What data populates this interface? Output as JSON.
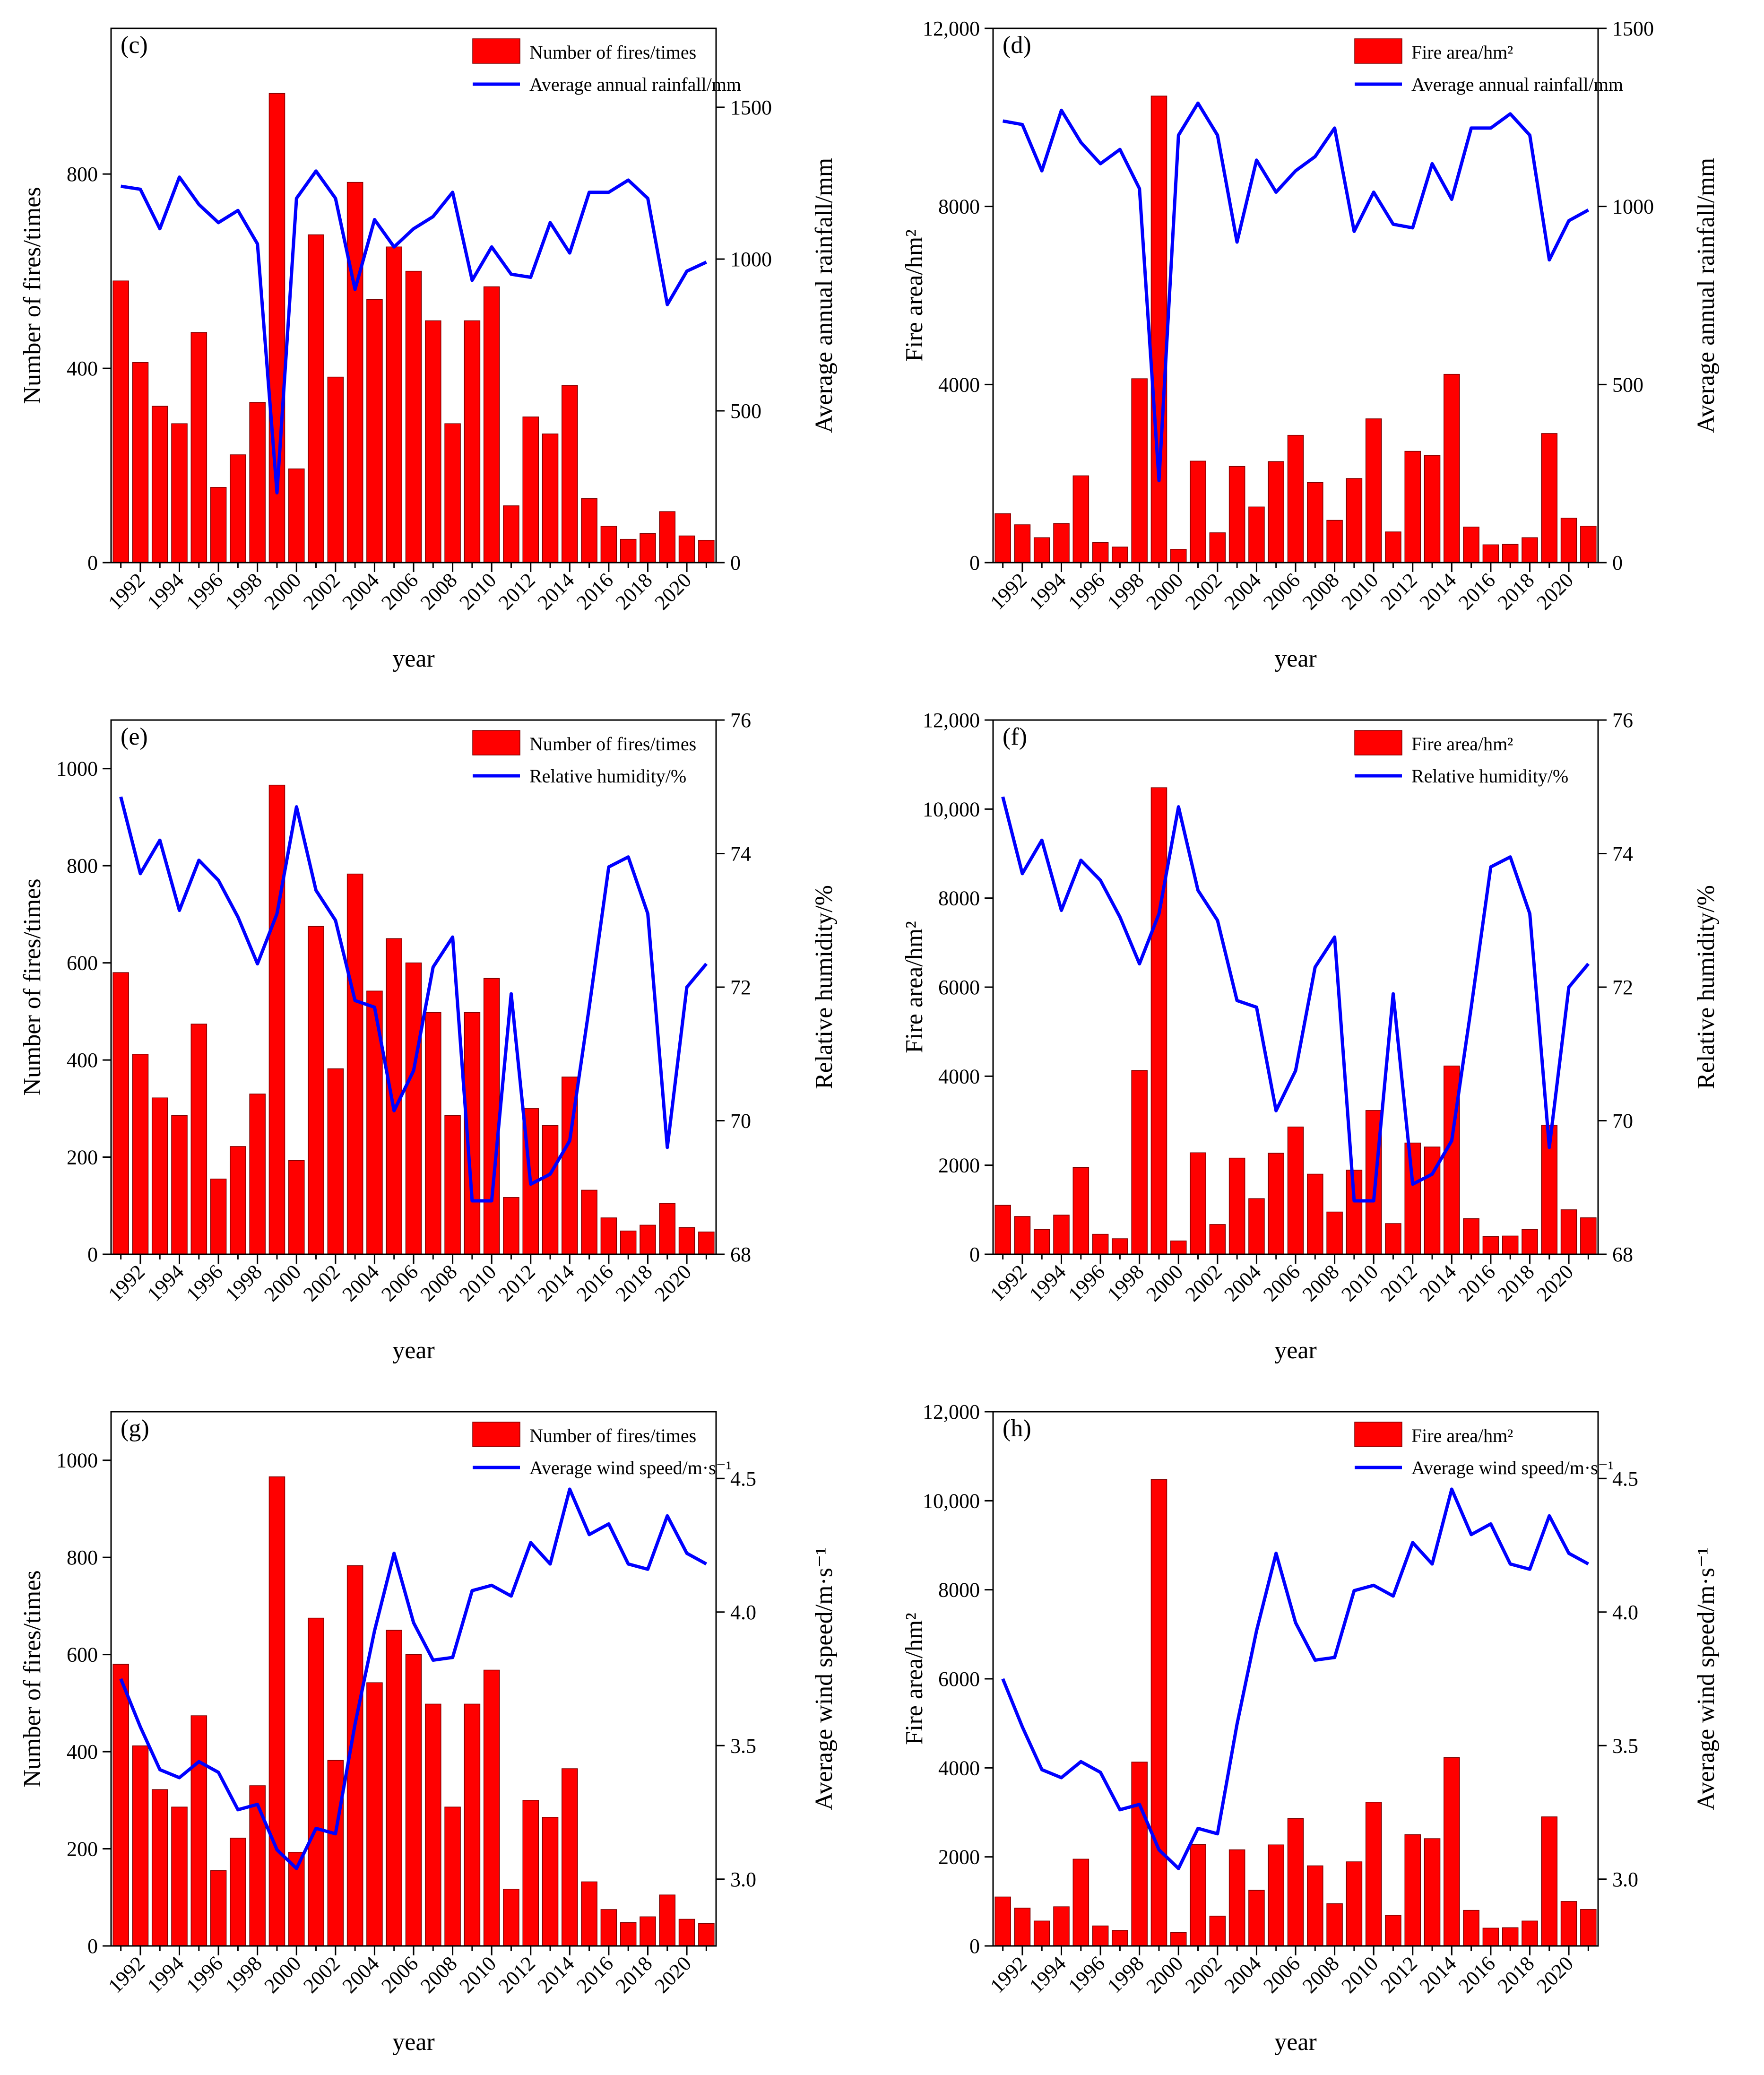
{
  "colors": {
    "bars": "#ff0000",
    "bar_edge": "#7a0000",
    "line": "#0000ff",
    "axis": "#000000"
  },
  "chart_data": [
    {
      "id": "c",
      "type": "bar+line",
      "title": "(c)",
      "xlabel": "year",
      "ylabel": "Number of fires/times",
      "y2label": "Average annual rainfall/mm",
      "legend": [
        "Number of fires/times",
        "Average annual rainfall/mm"
      ],
      "legend_position": "top-right",
      "x": [
        1991,
        1992,
        1993,
        1994,
        1995,
        1996,
        1997,
        1998,
        1999,
        2000,
        2001,
        2002,
        2003,
        2004,
        2005,
        2006,
        2007,
        2008,
        2009,
        2010,
        2011,
        2012,
        2013,
        2014,
        2015,
        2016,
        2017,
        2018,
        2019,
        2020,
        2021
      ],
      "xticks": [
        "1992",
        "1994",
        "1996",
        "1998",
        "2000",
        "2002",
        "2004",
        "2006",
        "2008",
        "2010",
        "2012",
        "2014",
        "2016",
        "2018",
        "2020"
      ],
      "bar_values": [
        580,
        412,
        322,
        286,
        474,
        155,
        222,
        330,
        966,
        193,
        675,
        382,
        783,
        542,
        650,
        600,
        498,
        286,
        498,
        568,
        117,
        300,
        265,
        365,
        132,
        75,
        48,
        60,
        105,
        55,
        46
      ],
      "line_values": [
        1240,
        1230,
        1100,
        1270,
        1180,
        1120,
        1160,
        1050,
        230,
        1200,
        1290,
        1200,
        900,
        1130,
        1040,
        1100,
        1140,
        1220,
        930,
        1040,
        950,
        940,
        1120,
        1020,
        1220,
        1220,
        1260,
        1200,
        850,
        960,
        990
      ],
      "ylim": [
        0,
        1100
      ],
      "yticks": [
        0,
        400,
        800
      ],
      "yticklabels": [
        "0",
        "400",
        "800"
      ],
      "y2lim": [
        0,
        1760
      ],
      "y2ticks": [
        0,
        500,
        1000,
        1500
      ],
      "y2ticklabels": [
        "0",
        "500",
        "1000",
        "1500"
      ]
    },
    {
      "id": "d",
      "type": "bar+line",
      "title": "(d)",
      "xlabel": "year",
      "ylabel": "Fire area/hm²",
      "y2label": "Average annual rainfall/mm",
      "legend": [
        "Fire area/hm²",
        "Average annual rainfall/mm"
      ],
      "legend_position": "top-right",
      "x": [
        1991,
        1992,
        1993,
        1994,
        1995,
        1996,
        1997,
        1998,
        1999,
        2000,
        2001,
        2002,
        2003,
        2004,
        2005,
        2006,
        2007,
        2008,
        2009,
        2010,
        2011,
        2012,
        2013,
        2014,
        2015,
        2016,
        2017,
        2018,
        2019,
        2020,
        2021
      ],
      "xticks": [
        "1992",
        "1994",
        "1996",
        "1998",
        "2000",
        "2002",
        "2004",
        "2006",
        "2008",
        "2010",
        "2012",
        "2014",
        "2016",
        "2018",
        "2020"
      ],
      "bar_values": [
        1100,
        850,
        560,
        880,
        1950,
        450,
        350,
        4130,
        10480,
        300,
        2280,
        670,
        2160,
        1250,
        2270,
        2860,
        1800,
        950,
        1890,
        3230,
        690,
        2500,
        2410,
        4230,
        800,
        400,
        410,
        560,
        2900,
        1000,
        820
      ],
      "line_values": [
        1240,
        1230,
        1100,
        1270,
        1180,
        1120,
        1160,
        1050,
        230,
        1200,
        1290,
        1200,
        900,
        1130,
        1040,
        1100,
        1140,
        1220,
        930,
        1040,
        950,
        940,
        1120,
        1020,
        1220,
        1220,
        1260,
        1200,
        850,
        960,
        990
      ],
      "ylim": [
        0,
        12000
      ],
      "yticks": [
        0,
        4000,
        8000,
        12000
      ],
      "yticklabels": [
        "0",
        "4000",
        "8000",
        "12,000"
      ],
      "y2lim": [
        0,
        1500
      ],
      "y2ticks": [
        0,
        500,
        1000,
        1500
      ],
      "y2ticklabels": [
        "0",
        "500",
        "1000",
        "1500"
      ]
    },
    {
      "id": "e",
      "type": "bar+line",
      "title": "(e)",
      "xlabel": "year",
      "ylabel": "Number of fires/times",
      "y2label": "Relative humidity/%",
      "legend": [
        "Number of fires/times",
        "Relative humidity/%"
      ],
      "legend_position": "top-right",
      "x": [
        1991,
        1992,
        1993,
        1994,
        1995,
        1996,
        1997,
        1998,
        1999,
        2000,
        2001,
        2002,
        2003,
        2004,
        2005,
        2006,
        2007,
        2008,
        2009,
        2010,
        2011,
        2012,
        2013,
        2014,
        2015,
        2016,
        2017,
        2018,
        2019,
        2020,
        2021
      ],
      "xticks": [
        "1992",
        "1994",
        "1996",
        "1998",
        "2000",
        "2002",
        "2004",
        "2006",
        "2008",
        "2010",
        "2012",
        "2014",
        "2016",
        "2018",
        "2020"
      ],
      "bar_values": [
        580,
        412,
        322,
        286,
        474,
        155,
        222,
        330,
        966,
        193,
        675,
        382,
        783,
        542,
        650,
        600,
        498,
        286,
        498,
        568,
        117,
        300,
        265,
        365,
        132,
        75,
        48,
        60,
        105,
        55,
        46
      ],
      "line_values": [
        74.85,
        73.7,
        74.2,
        73.15,
        73.9,
        73.6,
        73.05,
        72.35,
        73.1,
        74.7,
        73.45,
        73.0,
        71.8,
        71.7,
        70.15,
        70.75,
        72.3,
        72.75,
        68.8,
        68.8,
        71.9,
        69.05,
        69.2,
        69.7,
        71.7,
        73.8,
        73.95,
        73.1,
        69.6,
        72.0,
        72.35
      ],
      "ylim": [
        0,
        1100
      ],
      "yticks": [
        0,
        200,
        400,
        600,
        800,
        1000
      ],
      "yticklabels": [
        "0",
        "200",
        "400",
        "600",
        "800",
        "1000"
      ],
      "y2lim": [
        68,
        76
      ],
      "y2ticks": [
        68,
        70,
        72,
        74,
        76
      ],
      "y2ticklabels": [
        "68",
        "70",
        "72",
        "74",
        "76"
      ]
    },
    {
      "id": "f",
      "type": "bar+line",
      "title": "(f)",
      "xlabel": "year",
      "ylabel": "Fire area/hm²",
      "y2label": "Relative humidity/%",
      "legend": [
        "Fire area/hm²",
        "Relative humidity/%"
      ],
      "legend_position": "top-right",
      "x": [
        1991,
        1992,
        1993,
        1994,
        1995,
        1996,
        1997,
        1998,
        1999,
        2000,
        2001,
        2002,
        2003,
        2004,
        2005,
        2006,
        2007,
        2008,
        2009,
        2010,
        2011,
        2012,
        2013,
        2014,
        2015,
        2016,
        2017,
        2018,
        2019,
        2020,
        2021
      ],
      "xticks": [
        "1992",
        "1994",
        "1996",
        "1998",
        "2000",
        "2002",
        "2004",
        "2006",
        "2008",
        "2010",
        "2012",
        "2014",
        "2016",
        "2018",
        "2020"
      ],
      "bar_values": [
        1100,
        850,
        560,
        880,
        1950,
        450,
        350,
        4130,
        10480,
        300,
        2280,
        670,
        2160,
        1250,
        2270,
        2860,
        1800,
        950,
        1890,
        3230,
        690,
        2500,
        2410,
        4230,
        800,
        400,
        410,
        560,
        2900,
        1000,
        820
      ],
      "line_values": [
        74.85,
        73.7,
        74.2,
        73.15,
        73.9,
        73.6,
        73.05,
        72.35,
        73.1,
        74.7,
        73.45,
        73.0,
        71.8,
        71.7,
        70.15,
        70.75,
        72.3,
        72.75,
        68.8,
        68.8,
        71.9,
        69.05,
        69.2,
        69.7,
        71.7,
        73.8,
        73.95,
        73.1,
        69.6,
        72.0,
        72.35
      ],
      "ylim": [
        0,
        12000
      ],
      "yticks": [
        0,
        2000,
        4000,
        6000,
        8000,
        10000,
        12000
      ],
      "yticklabels": [
        "0",
        "2000",
        "4000",
        "6000",
        "8000",
        "10,000",
        "12,000"
      ],
      "y2lim": [
        68,
        76
      ],
      "y2ticks": [
        68,
        70,
        72,
        74,
        76
      ],
      "y2ticklabels": [
        "68",
        "70",
        "72",
        "74",
        "76"
      ]
    },
    {
      "id": "g",
      "type": "bar+line",
      "title": "(g)",
      "xlabel": "year",
      "ylabel": "Number of fires/times",
      "y2label": "Average wind speed/m·s⁻¹",
      "legend": [
        "Number of fires/times",
        "Average wind speed/m·s⁻¹"
      ],
      "legend_position": "top-right",
      "x": [
        1991,
        1992,
        1993,
        1994,
        1995,
        1996,
        1997,
        1998,
        1999,
        2000,
        2001,
        2002,
        2003,
        2004,
        2005,
        2006,
        2007,
        2008,
        2009,
        2010,
        2011,
        2012,
        2013,
        2014,
        2015,
        2016,
        2017,
        2018,
        2019,
        2020,
        2021
      ],
      "xticks": [
        "1992",
        "1994",
        "1996",
        "1998",
        "2000",
        "2002",
        "2004",
        "2006",
        "2008",
        "2010",
        "2012",
        "2014",
        "2016",
        "2018",
        "2020"
      ],
      "bar_values": [
        580,
        412,
        322,
        286,
        474,
        155,
        222,
        330,
        966,
        193,
        675,
        382,
        783,
        542,
        650,
        600,
        498,
        286,
        498,
        568,
        117,
        300,
        265,
        365,
        132,
        75,
        48,
        60,
        105,
        55,
        46
      ],
      "line_values": [
        3.75,
        3.57,
        3.41,
        3.38,
        3.44,
        3.4,
        3.26,
        3.28,
        3.11,
        3.04,
        3.19,
        3.17,
        3.58,
        3.93,
        4.22,
        3.96,
        3.82,
        3.83,
        4.08,
        4.1,
        4.06,
        4.26,
        4.18,
        4.46,
        4.29,
        4.33,
        4.18,
        4.16,
        4.36,
        4.22,
        4.18
      ],
      "ylim": [
        0,
        1100
      ],
      "yticks": [
        0,
        200,
        400,
        600,
        800,
        1000
      ],
      "yticklabels": [
        "0",
        "200",
        "400",
        "600",
        "800",
        "1000"
      ],
      "y2lim": [
        2.75,
        4.75
      ],
      "y2ticks": [
        3.0,
        3.5,
        4.0,
        4.5
      ],
      "y2ticklabels": [
        "3.0",
        "3.5",
        "4.0",
        "4.5"
      ]
    },
    {
      "id": "h",
      "type": "bar+line",
      "title": "(h)",
      "xlabel": "year",
      "ylabel": "Fire area/hm²",
      "y2label": "Average wind speed/m·s⁻¹",
      "legend": [
        "Fire area/hm²",
        "Average wind speed/m·s⁻¹"
      ],
      "legend_position": "top-right",
      "x": [
        1991,
        1992,
        1993,
        1994,
        1995,
        1996,
        1997,
        1998,
        1999,
        2000,
        2001,
        2002,
        2003,
        2004,
        2005,
        2006,
        2007,
        2008,
        2009,
        2010,
        2011,
        2012,
        2013,
        2014,
        2015,
        2016,
        2017,
        2018,
        2019,
        2020,
        2021
      ],
      "xticks": [
        "1992",
        "1994",
        "1996",
        "1998",
        "2000",
        "2002",
        "2004",
        "2006",
        "2008",
        "2010",
        "2012",
        "2014",
        "2016",
        "2018",
        "2020"
      ],
      "bar_values": [
        1100,
        850,
        560,
        880,
        1950,
        450,
        350,
        4130,
        10480,
        300,
        2280,
        670,
        2160,
        1250,
        2270,
        2860,
        1800,
        950,
        1890,
        3230,
        690,
        2500,
        2410,
        4230,
        800,
        400,
        410,
        560,
        2900,
        1000,
        820
      ],
      "line_values": [
        3.75,
        3.57,
        3.41,
        3.38,
        3.44,
        3.4,
        3.26,
        3.28,
        3.11,
        3.04,
        3.19,
        3.17,
        3.58,
        3.93,
        4.22,
        3.96,
        3.82,
        3.83,
        4.08,
        4.1,
        4.06,
        4.26,
        4.18,
        4.46,
        4.29,
        4.33,
        4.18,
        4.16,
        4.36,
        4.22,
        4.18
      ],
      "ylim": [
        0,
        12000
      ],
      "yticks": [
        0,
        2000,
        4000,
        6000,
        8000,
        10000,
        12000
      ],
      "yticklabels": [
        "0",
        "2000",
        "4000",
        "6000",
        "8000",
        "10,000",
        "12,000"
      ],
      "y2lim": [
        2.75,
        4.75
      ],
      "y2ticks": [
        3.0,
        3.5,
        4.0,
        4.5
      ],
      "y2ticklabels": [
        "3.0",
        "3.5",
        "4.0",
        "4.5"
      ]
    }
  ]
}
